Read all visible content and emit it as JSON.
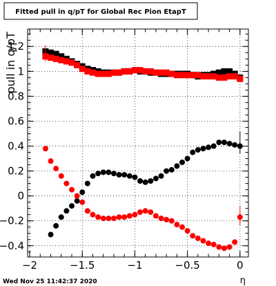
{
  "chart_data": {
    "type": "scatter",
    "title": "Fitted pull in q/pT for Global Rec Pion EtapT",
    "xlabel": "η",
    "ylabel": "pull in q/pT",
    "xlim": [
      -2.02,
      0.08
    ],
    "ylim": [
      -0.49,
      1.34
    ],
    "grid": true,
    "x_ticks": [
      "−2",
      "−1.5",
      "−1",
      "−0.5",
      "0"
    ],
    "x_tick_values": [
      -2,
      -1.5,
      -1,
      -0.5,
      0
    ],
    "y_ticks": [
      "−0.4",
      "−0.2",
      "0",
      "0.2",
      "0.4",
      "0.6",
      "0.8",
      "1",
      "1.2"
    ],
    "y_tick_values": [
      -0.4,
      -0.2,
      0,
      0.2,
      0.4,
      0.6,
      0.8,
      1.0,
      1.2
    ],
    "timestamp": "Wed Nov 25 11:42:37 2020",
    "series": [
      {
        "color": "#000000",
        "marker": "square",
        "x": [
          -1.85,
          -1.8,
          -1.75,
          -1.7,
          -1.65,
          -1.6,
          -1.55,
          -1.5,
          -1.45,
          -1.4,
          -1.35,
          -1.3,
          -1.25,
          -1.2,
          -1.15,
          -1.1,
          -1.05,
          -1.0,
          -0.95,
          -0.9,
          -0.85,
          -0.8,
          -0.75,
          -0.7,
          -0.65,
          -0.6,
          -0.55,
          -0.5,
          -0.45,
          -0.4,
          -0.35,
          -0.3,
          -0.25,
          -0.2,
          -0.15,
          -0.1,
          -0.05,
          0.0
        ],
        "y": [
          1.16,
          1.15,
          1.14,
          1.12,
          1.1,
          1.08,
          1.06,
          1.04,
          1.02,
          1.01,
          1.0,
          0.99,
          0.99,
          0.99,
          0.99,
          1.0,
          1.0,
          1.01,
          1.0,
          1.0,
          0.99,
          0.99,
          0.98,
          0.98,
          0.98,
          0.98,
          0.98,
          0.98,
          0.97,
          0.96,
          0.97,
          0.97,
          0.98,
          0.99,
          1.0,
          1.0,
          0.98,
          0.95
        ]
      },
      {
        "color": "#ff0000",
        "marker": "square",
        "x": [
          -1.85,
          -1.8,
          -1.75,
          -1.7,
          -1.65,
          -1.6,
          -1.55,
          -1.5,
          -1.45,
          -1.4,
          -1.35,
          -1.3,
          -1.25,
          -1.2,
          -1.15,
          -1.1,
          -1.05,
          -1.0,
          -0.95,
          -0.9,
          -0.85,
          -0.8,
          -0.75,
          -0.7,
          -0.65,
          -0.6,
          -0.55,
          -0.5,
          -0.45,
          -0.4,
          -0.35,
          -0.3,
          -0.25,
          -0.2,
          -0.15,
          -0.1,
          -0.05,
          0.0
        ],
        "y": [
          1.12,
          1.11,
          1.1,
          1.09,
          1.08,
          1.07,
          1.05,
          1.02,
          1.0,
          0.99,
          0.98,
          0.98,
          0.98,
          0.99,
          0.99,
          1.0,
          1.0,
          1.01,
          1.01,
          1.0,
          1.0,
          0.99,
          0.99,
          0.99,
          0.98,
          0.97,
          0.97,
          0.97,
          0.97,
          0.97,
          0.96,
          0.96,
          0.96,
          0.95,
          0.95,
          0.96,
          0.96,
          0.94
        ]
      },
      {
        "color": "#000000",
        "marker": "circle",
        "x": [
          -1.8,
          -1.75,
          -1.7,
          -1.65,
          -1.6,
          -1.55,
          -1.5,
          -1.45,
          -1.4,
          -1.35,
          -1.3,
          -1.25,
          -1.2,
          -1.15,
          -1.1,
          -1.05,
          -1.0,
          -0.95,
          -0.9,
          -0.85,
          -0.8,
          -0.75,
          -0.7,
          -0.65,
          -0.6,
          -0.55,
          -0.5,
          -0.45,
          -0.4,
          -0.35,
          -0.3,
          -0.25,
          -0.2,
          -0.15,
          -0.1,
          -0.05,
          0.0
        ],
        "y": [
          -0.31,
          -0.24,
          -0.17,
          -0.12,
          -0.08,
          -0.04,
          0.03,
          0.1,
          0.16,
          0.18,
          0.19,
          0.19,
          0.18,
          0.17,
          0.17,
          0.16,
          0.15,
          0.12,
          0.11,
          0.12,
          0.14,
          0.16,
          0.2,
          0.21,
          0.24,
          0.27,
          0.3,
          0.35,
          0.37,
          0.38,
          0.39,
          0.4,
          0.43,
          0.43,
          0.42,
          0.41,
          0.4
        ]
      },
      {
        "color": "#ff0000",
        "marker": "circle",
        "x": [
          -1.85,
          -1.8,
          -1.75,
          -1.7,
          -1.65,
          -1.6,
          -1.55,
          -1.5,
          -1.45,
          -1.4,
          -1.35,
          -1.3,
          -1.25,
          -1.2,
          -1.15,
          -1.1,
          -1.05,
          -1.0,
          -0.95,
          -0.9,
          -0.85,
          -0.8,
          -0.75,
          -0.7,
          -0.65,
          -0.6,
          -0.55,
          -0.5,
          -0.45,
          -0.4,
          -0.35,
          -0.3,
          -0.25,
          -0.2,
          -0.15,
          -0.1,
          -0.05,
          0.0
        ],
        "y": [
          0.38,
          0.28,
          0.22,
          0.16,
          0.1,
          0.05,
          0.0,
          -0.05,
          -0.12,
          -0.15,
          -0.17,
          -0.18,
          -0.18,
          -0.18,
          -0.17,
          -0.17,
          -0.16,
          -0.15,
          -0.13,
          -0.12,
          -0.13,
          -0.16,
          -0.18,
          -0.19,
          -0.2,
          -0.23,
          -0.25,
          -0.28,
          -0.32,
          -0.34,
          -0.36,
          -0.38,
          -0.39,
          -0.41,
          -0.42,
          -0.41,
          -0.37,
          -0.17
        ]
      }
    ]
  }
}
